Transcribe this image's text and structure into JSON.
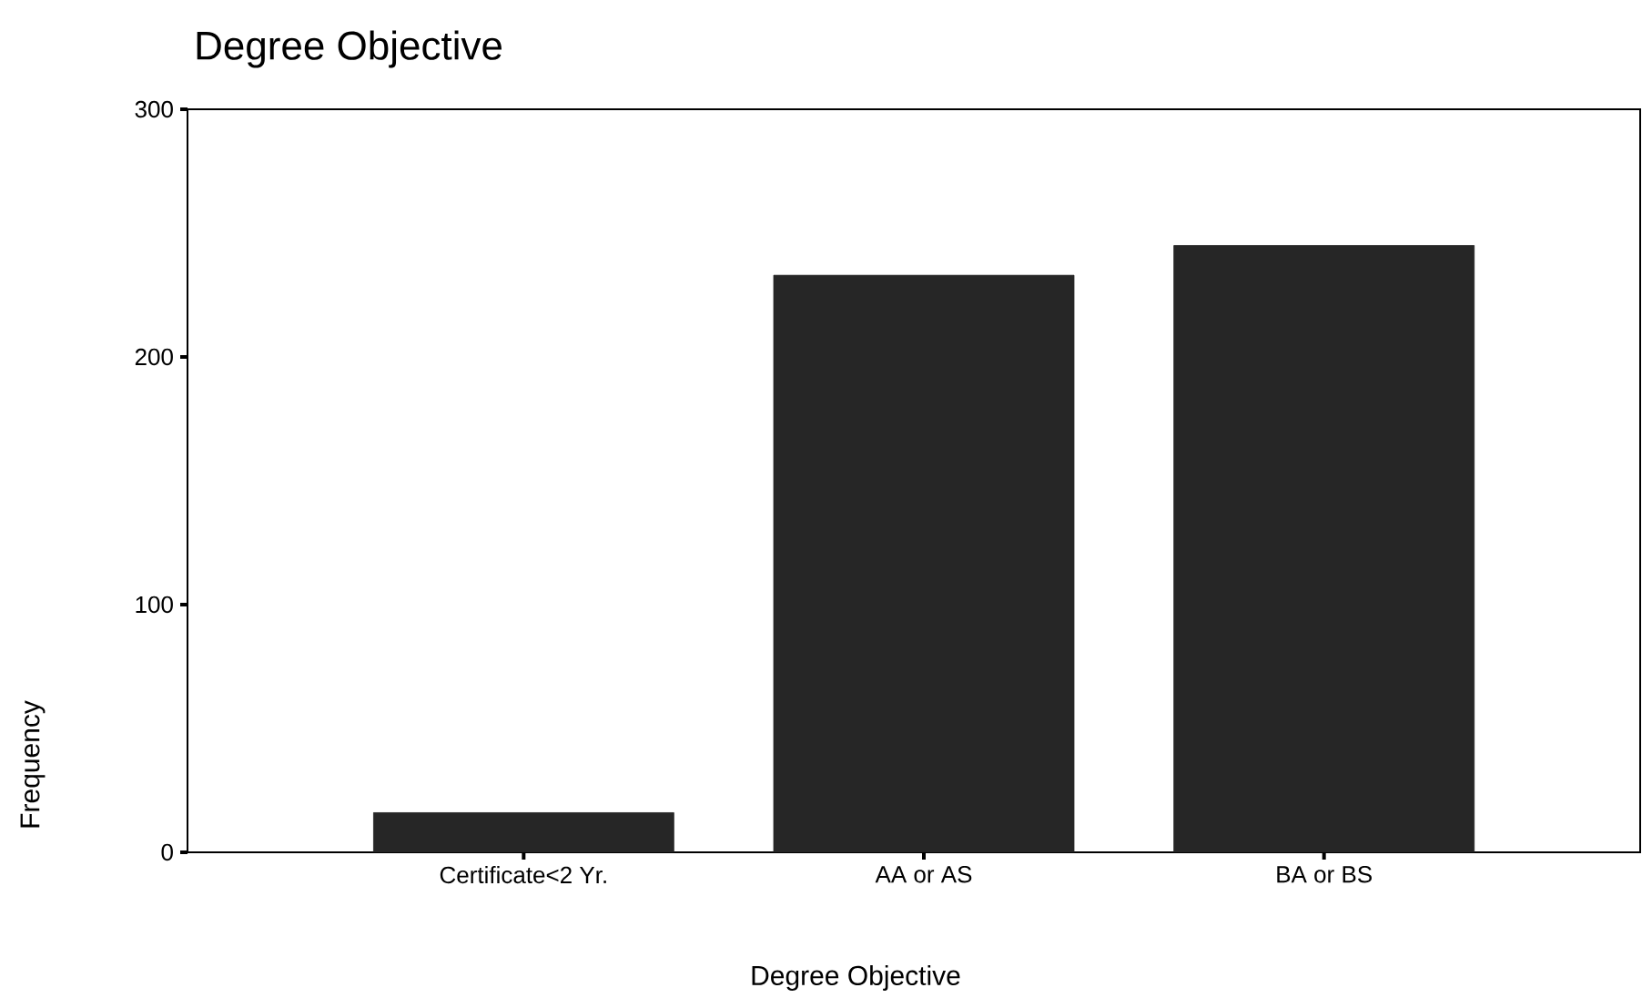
{
  "chart_data": {
    "type": "bar",
    "title": "Degree Objective",
    "xlabel": "Degree Objective",
    "ylabel": "Frequency",
    "categories": [
      "Certificate<2 Yr.",
      "AA or AS",
      "BA or BS"
    ],
    "values": [
      16,
      233,
      245
    ],
    "color": "#262626",
    "ylim": [
      0,
      300
    ],
    "yticks": [
      0,
      100,
      200,
      300
    ],
    "grid": false,
    "legend": false
  }
}
